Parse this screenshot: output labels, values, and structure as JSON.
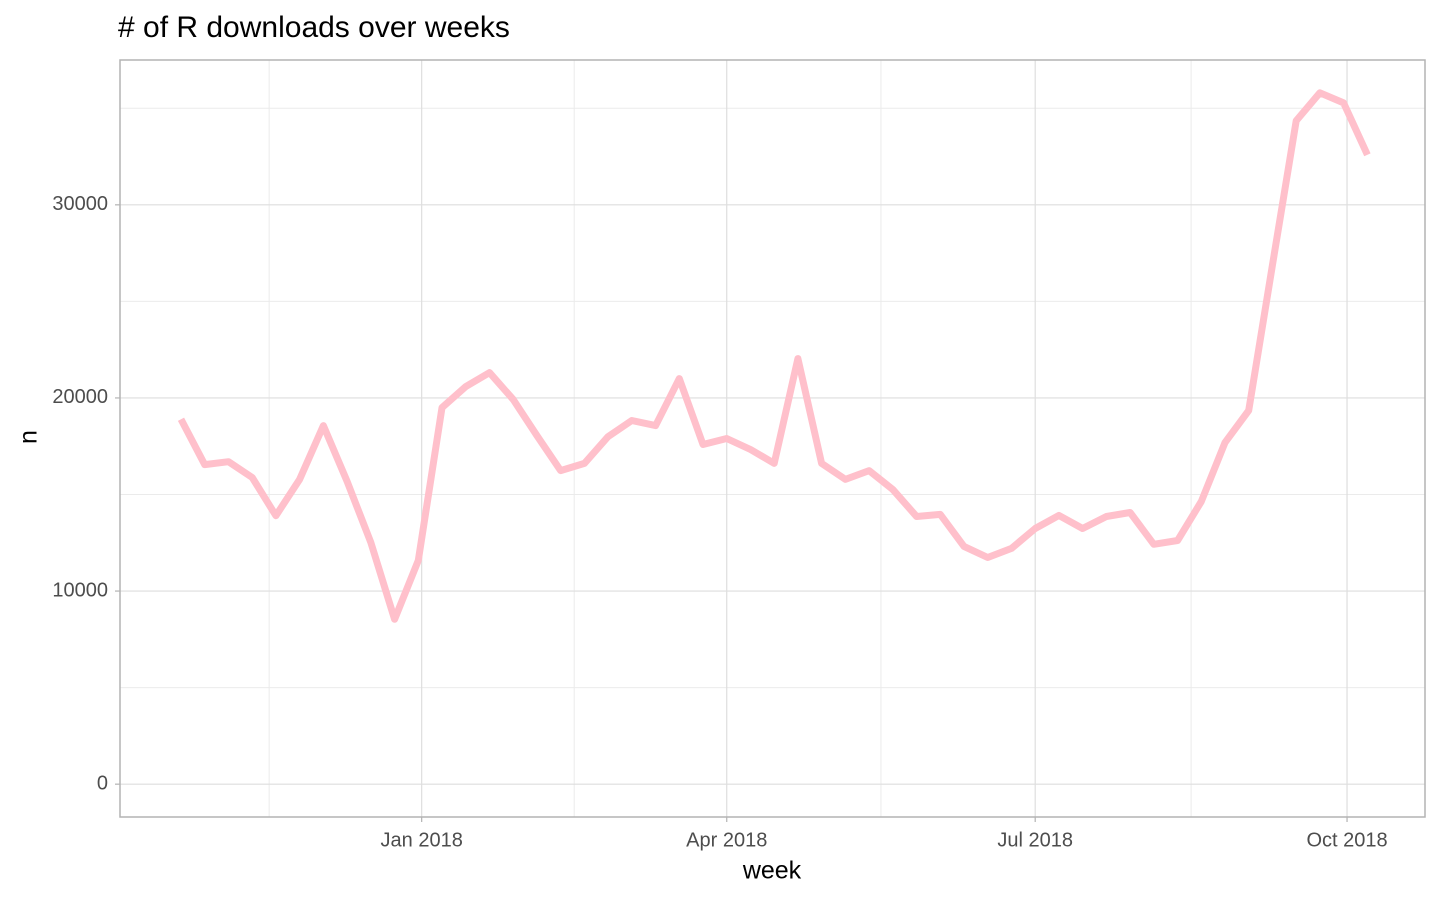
{
  "chart_data": {
    "type": "line",
    "title": "# of R downloads over weeks",
    "x_label": "week",
    "y_label": "n",
    "x": [
      "2017-10-22",
      "2017-10-29",
      "2017-11-05",
      "2017-11-12",
      "2017-11-19",
      "2017-11-26",
      "2017-12-03",
      "2017-12-10",
      "2017-12-17",
      "2017-12-24",
      "2017-12-31",
      "2018-01-07",
      "2018-01-14",
      "2018-01-21",
      "2018-01-28",
      "2018-02-04",
      "2018-02-11",
      "2018-02-18",
      "2018-02-25",
      "2018-03-04",
      "2018-03-11",
      "2018-03-18",
      "2018-03-25",
      "2018-04-01",
      "2018-04-08",
      "2018-04-15",
      "2018-04-22",
      "2018-04-29",
      "2018-05-06",
      "2018-05-13",
      "2018-05-20",
      "2018-05-27",
      "2018-06-03",
      "2018-06-10",
      "2018-06-17",
      "2018-06-24",
      "2018-07-01",
      "2018-07-08",
      "2018-07-15",
      "2018-07-22",
      "2018-07-29",
      "2018-08-05",
      "2018-08-12",
      "2018-08-19",
      "2018-08-26",
      "2018-09-02",
      "2018-09-09",
      "2018-09-16",
      "2018-09-23",
      "2018-09-30",
      "2018-10-07"
    ],
    "values": [
      18900,
      16550,
      16700,
      15880,
      13900,
      15780,
      18570,
      15680,
      12520,
      8540,
      11590,
      19500,
      20590,
      21310,
      19920,
      18050,
      16240,
      16610,
      18000,
      18830,
      18570,
      21000,
      17590,
      17900,
      17330,
      16610,
      22040,
      16610,
      15780,
      16240,
      15260,
      13860,
      13970,
      12310,
      11740,
      12210,
      13240,
      13920,
      13240,
      13860,
      14070,
      12420,
      12620,
      14640,
      17690,
      19350,
      26900,
      34350,
      35800,
      35280,
      32590
    ],
    "color": "#ffc0cb",
    "xlim": [
      "2017-10-04",
      "2018-10-24"
    ],
    "xticks": [
      {
        "value": "2018-01-01",
        "label": "Jan 2018"
      },
      {
        "value": "2018-04-01",
        "label": "Apr 2018"
      },
      {
        "value": "2018-07-01",
        "label": "Jul 2018"
      },
      {
        "value": "2018-10-01",
        "label": "Oct 2018"
      }
    ],
    "ylim": [
      -1700,
      37500
    ],
    "yticks": [
      0,
      10000,
      20000,
      30000
    ],
    "grid": true
  }
}
